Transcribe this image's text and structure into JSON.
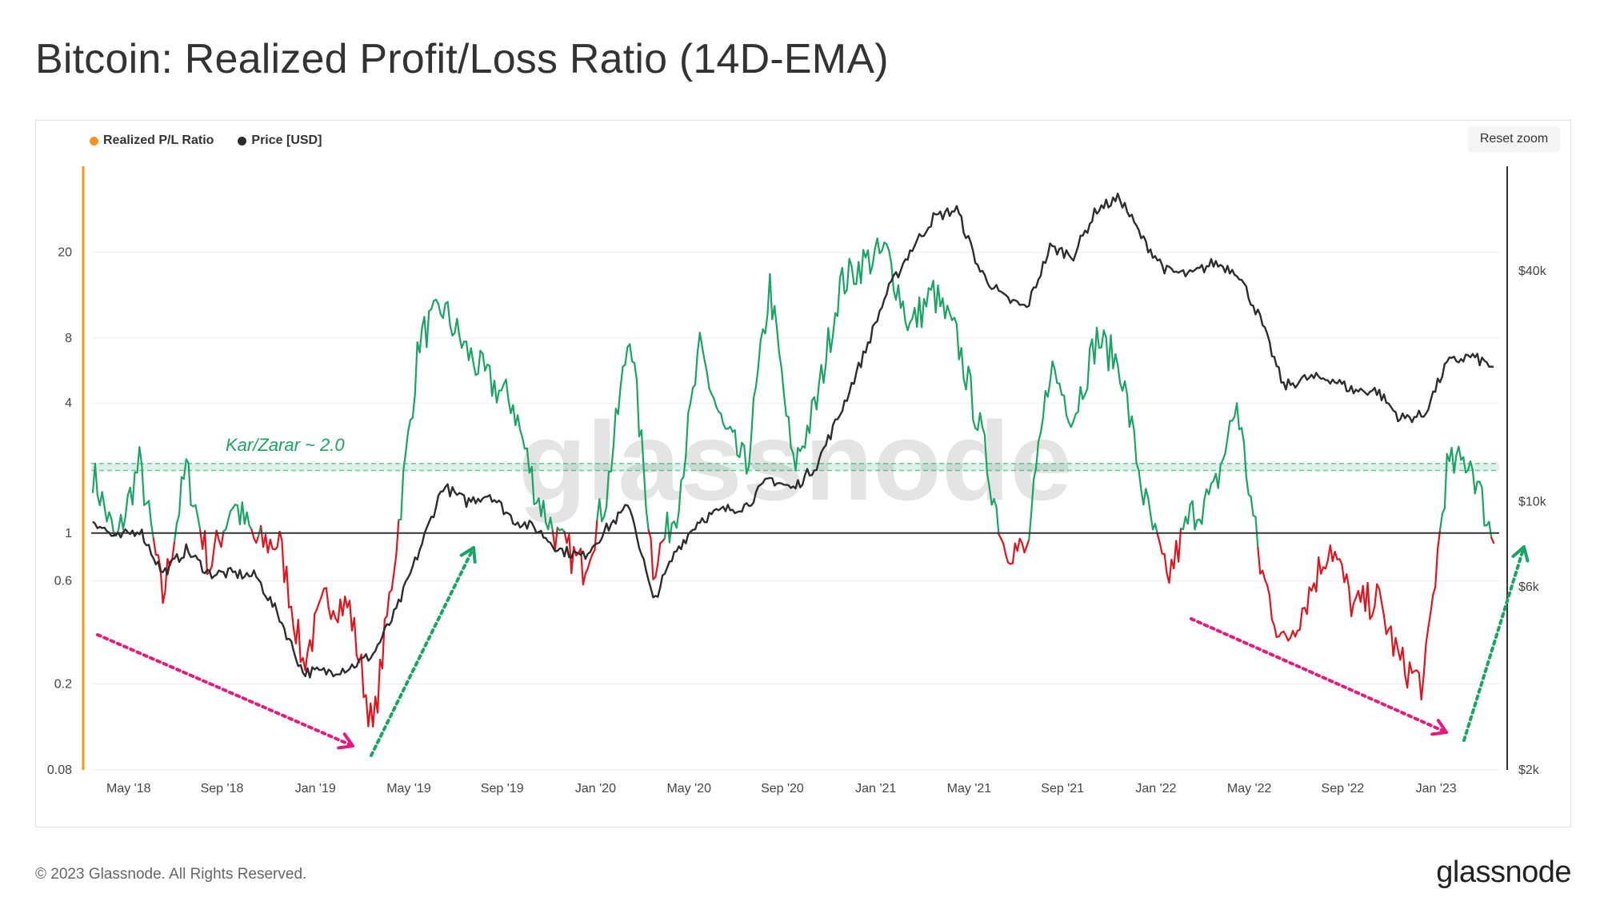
{
  "title": "Bitcoin: Realized Profit/Loss Ratio (14D-EMA)",
  "footer": "© 2023 Glassnode. All Rights Reserved.",
  "logo": "glassnode",
  "watermark": "glassnode",
  "reset_zoom": "Reset zoom",
  "colors": {
    "profit": "#19a463",
    "loss": "#e3131b",
    "price": "#2d2d2d",
    "axis_left": "#f7931a",
    "band": "#19a463",
    "arrow_down": "#e8197a",
    "arrow_up": "#19a463"
  },
  "chart_data": {
    "type": "line",
    "legend": [
      {
        "name": "Realized P/L Ratio",
        "color": "#f7931a"
      },
      {
        "name": "Price [USD]",
        "color": "#2d2d2d"
      }
    ],
    "x_ticks": [
      "May '18",
      "Sep '18",
      "Jan '19",
      "May '19",
      "Sep '19",
      "Jan '20",
      "May '20",
      "Sep '20",
      "Jan '21",
      "May '21",
      "Sep '21",
      "Jan '22",
      "May '22",
      "Sep '22",
      "Jan '23"
    ],
    "y_left": {
      "scale": "log",
      "range": [
        0.08,
        50
      ],
      "ticks": [
        "0.08",
        "0.2",
        "0.6",
        "1",
        "4",
        "8",
        "20"
      ]
    },
    "y_right": {
      "scale": "log",
      "range": [
        2000,
        75000
      ],
      "ticks": [
        "$2k",
        "$6k",
        "$10k",
        "$40k"
      ]
    },
    "annotation": "Kar/Zarar ~ 2.0",
    "threshold": 1,
    "band": [
      1.95,
      2.1
    ],
    "series": [
      {
        "name": "Realized P/L Ratio",
        "axis": "left",
        "points": [
          [
            "2018-03",
            1.9
          ],
          [
            "2018-04",
            0.9
          ],
          [
            "2018-05",
            2.1
          ],
          [
            "2018-06",
            0.5
          ],
          [
            "2018-07",
            2.0
          ],
          [
            "2018-08",
            0.7
          ],
          [
            "2018-09",
            1.4
          ],
          [
            "2018-10",
            0.9
          ],
          [
            "2018-11",
            0.9
          ],
          [
            "2018-12",
            0.25
          ],
          [
            "2019-01",
            0.5
          ],
          [
            "2019-02",
            0.45
          ],
          [
            "2019-03",
            0.12
          ],
          [
            "2019-04",
            0.9
          ],
          [
            "2019-05",
            8.0
          ],
          [
            "2019-06",
            11.0
          ],
          [
            "2019-07",
            7.0
          ],
          [
            "2019-08",
            5.0
          ],
          [
            "2019-09",
            4.0
          ],
          [
            "2019-10",
            1.5
          ],
          [
            "2019-11",
            0.9
          ],
          [
            "2019-12",
            0.7
          ],
          [
            "2020-01",
            1.5
          ],
          [
            "2020-02",
            9.0
          ],
          [
            "2020-03",
            0.7
          ],
          [
            "2020-04",
            1.3
          ],
          [
            "2020-05",
            7.0
          ],
          [
            "2020-06",
            3.0
          ],
          [
            "2020-07",
            2.0
          ],
          [
            "2020-08",
            14.0
          ],
          [
            "2020-09",
            2.0
          ],
          [
            "2020-10",
            4.0
          ],
          [
            "2020-11",
            14.0
          ],
          [
            "2020-12",
            18.0
          ],
          [
            "2021-01",
            20.0
          ],
          [
            "2021-02",
            9.0
          ],
          [
            "2021-03",
            13.0
          ],
          [
            "2021-04",
            8.0
          ],
          [
            "2021-05",
            3.0
          ],
          [
            "2021-06",
            0.9
          ],
          [
            "2021-07",
            0.8
          ],
          [
            "2021-08",
            6.0
          ],
          [
            "2021-09",
            3.5
          ],
          [
            "2021-10",
            8.0
          ],
          [
            "2021-11",
            6.0
          ],
          [
            "2021-12",
            1.5
          ],
          [
            "2022-01",
            0.6
          ],
          [
            "2022-02",
            1.2
          ],
          [
            "2022-03",
            1.5
          ],
          [
            "2022-04",
            4.0
          ],
          [
            "2022-05",
            0.7
          ],
          [
            "2022-06",
            0.3
          ],
          [
            "2022-07",
            0.5
          ],
          [
            "2022-08",
            0.9
          ],
          [
            "2022-09",
            0.45
          ],
          [
            "2022-10",
            0.5
          ],
          [
            "2022-11",
            0.25
          ],
          [
            "2022-12",
            0.2
          ],
          [
            "2023-01",
            2.0
          ],
          [
            "2023-02",
            2.2
          ],
          [
            "2023-03",
            0.9
          ]
        ]
      },
      {
        "name": "Price [USD]",
        "axis": "right",
        "points": [
          [
            "2018-03",
            9000
          ],
          [
            "2018-04",
            8000
          ],
          [
            "2018-05",
            8500
          ],
          [
            "2018-06",
            6500
          ],
          [
            "2018-07",
            7500
          ],
          [
            "2018-08",
            6500
          ],
          [
            "2018-09",
            6500
          ],
          [
            "2018-10",
            6400
          ],
          [
            "2018-11",
            5000
          ],
          [
            "2018-12",
            3600
          ],
          [
            "2019-01",
            3600
          ],
          [
            "2019-02",
            3700
          ],
          [
            "2019-03",
            4000
          ],
          [
            "2019-04",
            5200
          ],
          [
            "2019-05",
            7500
          ],
          [
            "2019-06",
            11000
          ],
          [
            "2019-07",
            10000
          ],
          [
            "2019-08",
            10500
          ],
          [
            "2019-09",
            9000
          ],
          [
            "2019-10",
            8500
          ],
          [
            "2019-11",
            7500
          ],
          [
            "2019-12",
            7200
          ],
          [
            "2020-01",
            8500
          ],
          [
            "2020-02",
            9800
          ],
          [
            "2020-03",
            5500
          ],
          [
            "2020-04",
            7500
          ],
          [
            "2020-05",
            9000
          ],
          [
            "2020-06",
            9500
          ],
          [
            "2020-07",
            9800
          ],
          [
            "2020-08",
            11500
          ],
          [
            "2020-09",
            10800
          ],
          [
            "2020-10",
            12500
          ],
          [
            "2020-11",
            17000
          ],
          [
            "2020-12",
            24000
          ],
          [
            "2021-01",
            35000
          ],
          [
            "2021-02",
            45000
          ],
          [
            "2021-03",
            55000
          ],
          [
            "2021-04",
            58000
          ],
          [
            "2021-05",
            40000
          ],
          [
            "2021-06",
            34000
          ],
          [
            "2021-07",
            32000
          ],
          [
            "2021-08",
            46000
          ],
          [
            "2021-09",
            44000
          ],
          [
            "2021-10",
            58000
          ],
          [
            "2021-11",
            62000
          ],
          [
            "2021-12",
            48000
          ],
          [
            "2022-01",
            40000
          ],
          [
            "2022-02",
            39000
          ],
          [
            "2022-03",
            42000
          ],
          [
            "2022-04",
            40000
          ],
          [
            "2022-05",
            30000
          ],
          [
            "2022-06",
            20000
          ],
          [
            "2022-07",
            21000
          ],
          [
            "2022-08",
            21000
          ],
          [
            "2022-09",
            19500
          ],
          [
            "2022-10",
            19500
          ],
          [
            "2022-11",
            16500
          ],
          [
            "2022-12",
            16800
          ],
          [
            "2023-01",
            23000
          ],
          [
            "2023-02",
            24000
          ],
          [
            "2023-03",
            22500
          ]
        ]
      }
    ]
  }
}
